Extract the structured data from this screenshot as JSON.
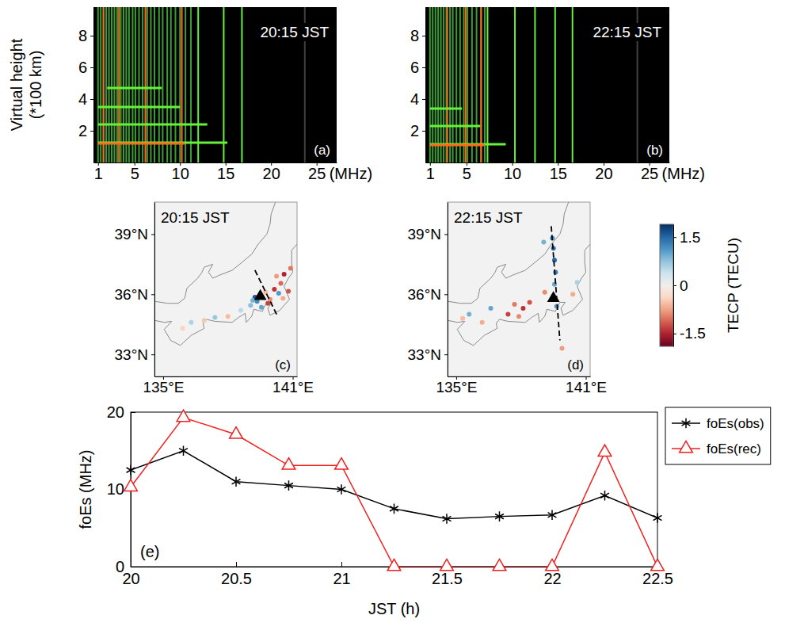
{
  "chart_data": [
    {
      "type": "ionogram",
      "title": "20:15 JST",
      "panel": "(a)",
      "ylabel": "Virtual height (*100 km)",
      "xlabel": "(MHz)",
      "xlim": [
        0.5,
        27.2
      ],
      "xticks": [
        1,
        5,
        10,
        15,
        20,
        25
      ],
      "ylim": [
        0,
        9.8
      ],
      "yticks": [
        2,
        4,
        6,
        8
      ],
      "series": [
        {
          "type": "vline",
          "color": "#3d9e35",
          "x": [
            1.0,
            1.3,
            1.6,
            1.9,
            2.2,
            2.5,
            2.8,
            3.1,
            3.5,
            3.8,
            4.1,
            4.4,
            4.8,
            5.1,
            5.5,
            5.9,
            6.4,
            6.8,
            7.2,
            7.7,
            8.1,
            8.6,
            9.0,
            9.5,
            10.0,
            10.6,
            11.2
          ]
        },
        {
          "type": "vline",
          "color": "#66f23a",
          "x": [
            12.0,
            14.8,
            16.8
          ]
        },
        {
          "type": "vline",
          "color": "#404040",
          "x": [
            23.7
          ]
        },
        {
          "type": "vline",
          "color": "#ff6a1a",
          "x": [
            1.6,
            3.3,
            6.2,
            10.2
          ]
        },
        {
          "type": "hline",
          "color": "#66f23a",
          "values": [
            1.25,
            2.4,
            3.5,
            4.7
          ],
          "x_start": [
            1,
            1,
            1,
            2
          ],
          "x_end": [
            15.2,
            13,
            10,
            8
          ]
        },
        {
          "type": "hline",
          "color": "#ff6a1a",
          "values": [
            1.2
          ],
          "x_start": [
            1
          ],
          "x_end": [
            10.5
          ]
        }
      ]
    },
    {
      "type": "ionogram",
      "title": "22:15 JST",
      "panel": "(b)",
      "xlabel": "(MHz)",
      "xlim": [
        0.5,
        27.2
      ],
      "xticks": [
        1,
        5,
        10,
        15,
        20,
        25
      ],
      "ylim": [
        0,
        9.8
      ],
      "yticks": [
        2,
        4,
        6,
        8
      ],
      "series": [
        {
          "type": "vline",
          "color": "#3d9e35",
          "x": [
            1.0,
            1.3,
            1.6,
            1.9,
            2.2,
            2.5,
            2.8,
            3.2,
            3.5,
            3.9,
            4.3,
            4.7,
            5.1,
            5.6,
            6.1,
            6.6,
            7.0
          ]
        },
        {
          "type": "vline",
          "color": "#66f23a",
          "x": [
            7.3,
            10.3,
            12.5,
            14.7,
            16.6
          ]
        },
        {
          "type": "vline",
          "color": "#404040",
          "x": [
            23.7
          ]
        },
        {
          "type": "vline",
          "color": "#ff6a1a",
          "x": [
            2.9,
            4.9,
            6.6
          ]
        },
        {
          "type": "hline",
          "color": "#66f23a",
          "values": [
            1.15,
            2.3,
            3.4
          ],
          "x_start": [
            1,
            1,
            1
          ],
          "x_end": [
            9.3,
            6.5,
            4.5
          ]
        },
        {
          "type": "hline",
          "color": "#ff6a1a",
          "values": [
            1.1
          ],
          "x_start": [
            1
          ],
          "x_end": [
            7
          ]
        }
      ]
    },
    {
      "type": "map",
      "title": "20:15 JST",
      "panel": "(c)",
      "xlim": [
        134.6,
        141.2
      ],
      "ylim": [
        31.9,
        40.6
      ],
      "xticks": [
        {
          "value": 135,
          "label": "135°E"
        },
        {
          "value": 141,
          "label": "141°E"
        }
      ],
      "yticks": [
        {
          "value": 33,
          "label": "33°N"
        },
        {
          "value": 36,
          "label": "36°N"
        },
        {
          "value": 39,
          "label": "39°N"
        }
      ],
      "coastline": {
        "lon": [
          134.6,
          135.2,
          135.7,
          136.0,
          136.1,
          136.6,
          136.8,
          136.9,
          137.3,
          137.1,
          137.3,
          137.6,
          138.2,
          138.6,
          139.1,
          139.4,
          139.8,
          139.95,
          140.0,
          140.2,
          null,
          141.4,
          141.6,
          141.2,
          140.95,
          140.95,
          141.0,
          140.8,
          140.6,
          140.85,
          140.4,
          139.95,
          139.85,
          140.05,
          139.8,
          139.65,
          139.6,
          139.2,
          139.1,
          138.85,
          138.8,
          138.5,
          138.2,
          137.4,
          137.0,
          136.85,
          136.9,
          136.3,
          135.8,
          135.35,
          135.05,
          135.4,
          135.05,
          134.6
        ],
        "lat": [
          35.65,
          35.55,
          35.55,
          35.8,
          36.3,
          36.8,
          37.1,
          37.35,
          37.5,
          37.1,
          36.8,
          36.95,
          37.2,
          37.55,
          38.0,
          38.5,
          39.0,
          39.5,
          40.0,
          40.6,
          null,
          40.0,
          39.0,
          38.5,
          38.2,
          37.6,
          37.1,
          36.8,
          36.4,
          35.75,
          35.2,
          34.95,
          35.3,
          35.6,
          35.6,
          35.3,
          35.15,
          35.25,
          34.9,
          34.6,
          35.05,
          34.85,
          34.6,
          34.65,
          34.75,
          34.55,
          34.3,
          33.95,
          33.45,
          33.7,
          34.25,
          34.65,
          34.6,
          34.7
        ]
      },
      "path": {
        "lon": [
          139.25,
          140.3
        ],
        "lat": [
          37.2,
          34.9
        ]
      },
      "station": {
        "lon": 139.5,
        "lat": 35.9
      },
      "points": {
        "lon": [
          139.25,
          139.35,
          139.15,
          139.55,
          139.85,
          139.95,
          140.15,
          140.45,
          140.6,
          140.25,
          140.8,
          140.55,
          140.9,
          139.05,
          138.6,
          138.0,
          137.4,
          136.9,
          136.3,
          135.9,
          140.35,
          139.75
        ],
        "lat": [
          35.85,
          35.65,
          35.7,
          35.35,
          35.55,
          35.75,
          36.25,
          36.55,
          37.0,
          36.9,
          36.15,
          35.8,
          37.3,
          35.45,
          35.2,
          34.9,
          34.85,
          34.7,
          34.6,
          34.3,
          36.05,
          36.1
        ],
        "values": [
          1.6,
          1.2,
          0.9,
          1.0,
          -1.3,
          -0.9,
          -1.4,
          -1.1,
          -1.5,
          -0.8,
          -1.2,
          -0.7,
          -1.0,
          0.8,
          0.5,
          -0.6,
          0.7,
          -0.5,
          0.6,
          -0.4,
          1.1,
          -0.6
        ]
      }
    },
    {
      "type": "map",
      "title": "22:15 JST",
      "panel": "(d)",
      "xlim": [
        134.6,
        141.2
      ],
      "ylim": [
        31.9,
        40.6
      ],
      "xticks": [
        {
          "value": 135,
          "label": "135°E"
        },
        {
          "value": 141,
          "label": "141°E"
        }
      ],
      "yticks": [
        {
          "value": 33,
          "label": "33°N"
        },
        {
          "value": 36,
          "label": "36°N"
        },
        {
          "value": 39,
          "label": "39°N"
        }
      ],
      "path": {
        "lon": [
          139.4,
          139.8
        ],
        "lat": [
          39.4,
          33.7
        ]
      },
      "station": {
        "lon": 139.5,
        "lat": 35.8
      },
      "points": {
        "lon": [
          139.45,
          139.5,
          139.55,
          139.6,
          139.55,
          139.65,
          139.05,
          138.4,
          138.1,
          137.7,
          137.4,
          137.9,
          136.6,
          135.6,
          135.3,
          136.2,
          139.9,
          140.4,
          140.6,
          139.1
        ],
        "lat": [
          38.8,
          38.3,
          37.7,
          37.1,
          36.5,
          35.4,
          38.6,
          35.6,
          35.3,
          35.5,
          35.0,
          34.9,
          35.3,
          35.0,
          34.8,
          34.6,
          33.3,
          36.0,
          36.6,
          36.1
        ],
        "values": [
          1.2,
          1.4,
          1.5,
          1.3,
          1.0,
          1.1,
          0.9,
          -1.2,
          -1.4,
          -1.0,
          -1.3,
          -0.9,
          1.0,
          0.9,
          -0.6,
          -0.7,
          -0.8,
          -0.7,
          0.6,
          -0.9
        ]
      },
      "color_range": [
        -1.9,
        1.9
      ],
      "color_ticks": [
        -1.5,
        0,
        1.5
      ],
      "color_label": "TECP (TECU)"
    },
    {
      "type": "line",
      "panel": "(e)",
      "xlabel": "JST (h)",
      "ylabel": "foEs (MHz)",
      "x": [
        20,
        20.25,
        20.5,
        20.75,
        21,
        21.25,
        21.5,
        21.75,
        22,
        22.25,
        22.5
      ],
      "xlim": [
        20,
        22.5
      ],
      "xticks": [
        20,
        20.5,
        21,
        21.5,
        22,
        22.5
      ],
      "ylim": [
        0,
        20
      ],
      "yticks": [
        0,
        10,
        20
      ],
      "legend": "right",
      "series": [
        {
          "name": "foEs(obs)",
          "color": "#000000",
          "marker": "star",
          "values": [
            12.5,
            15,
            11,
            10.5,
            10,
            7.5,
            6.2,
            6.5,
            6.7,
            9.2,
            6.3
          ]
        },
        {
          "name": "foEs(rec)",
          "color": "#f02020",
          "marker": "triangle",
          "values": [
            10.3,
            19.3,
            17.1,
            13.1,
            13.1,
            0,
            0,
            0,
            0,
            14.8,
            0
          ]
        }
      ]
    }
  ]
}
